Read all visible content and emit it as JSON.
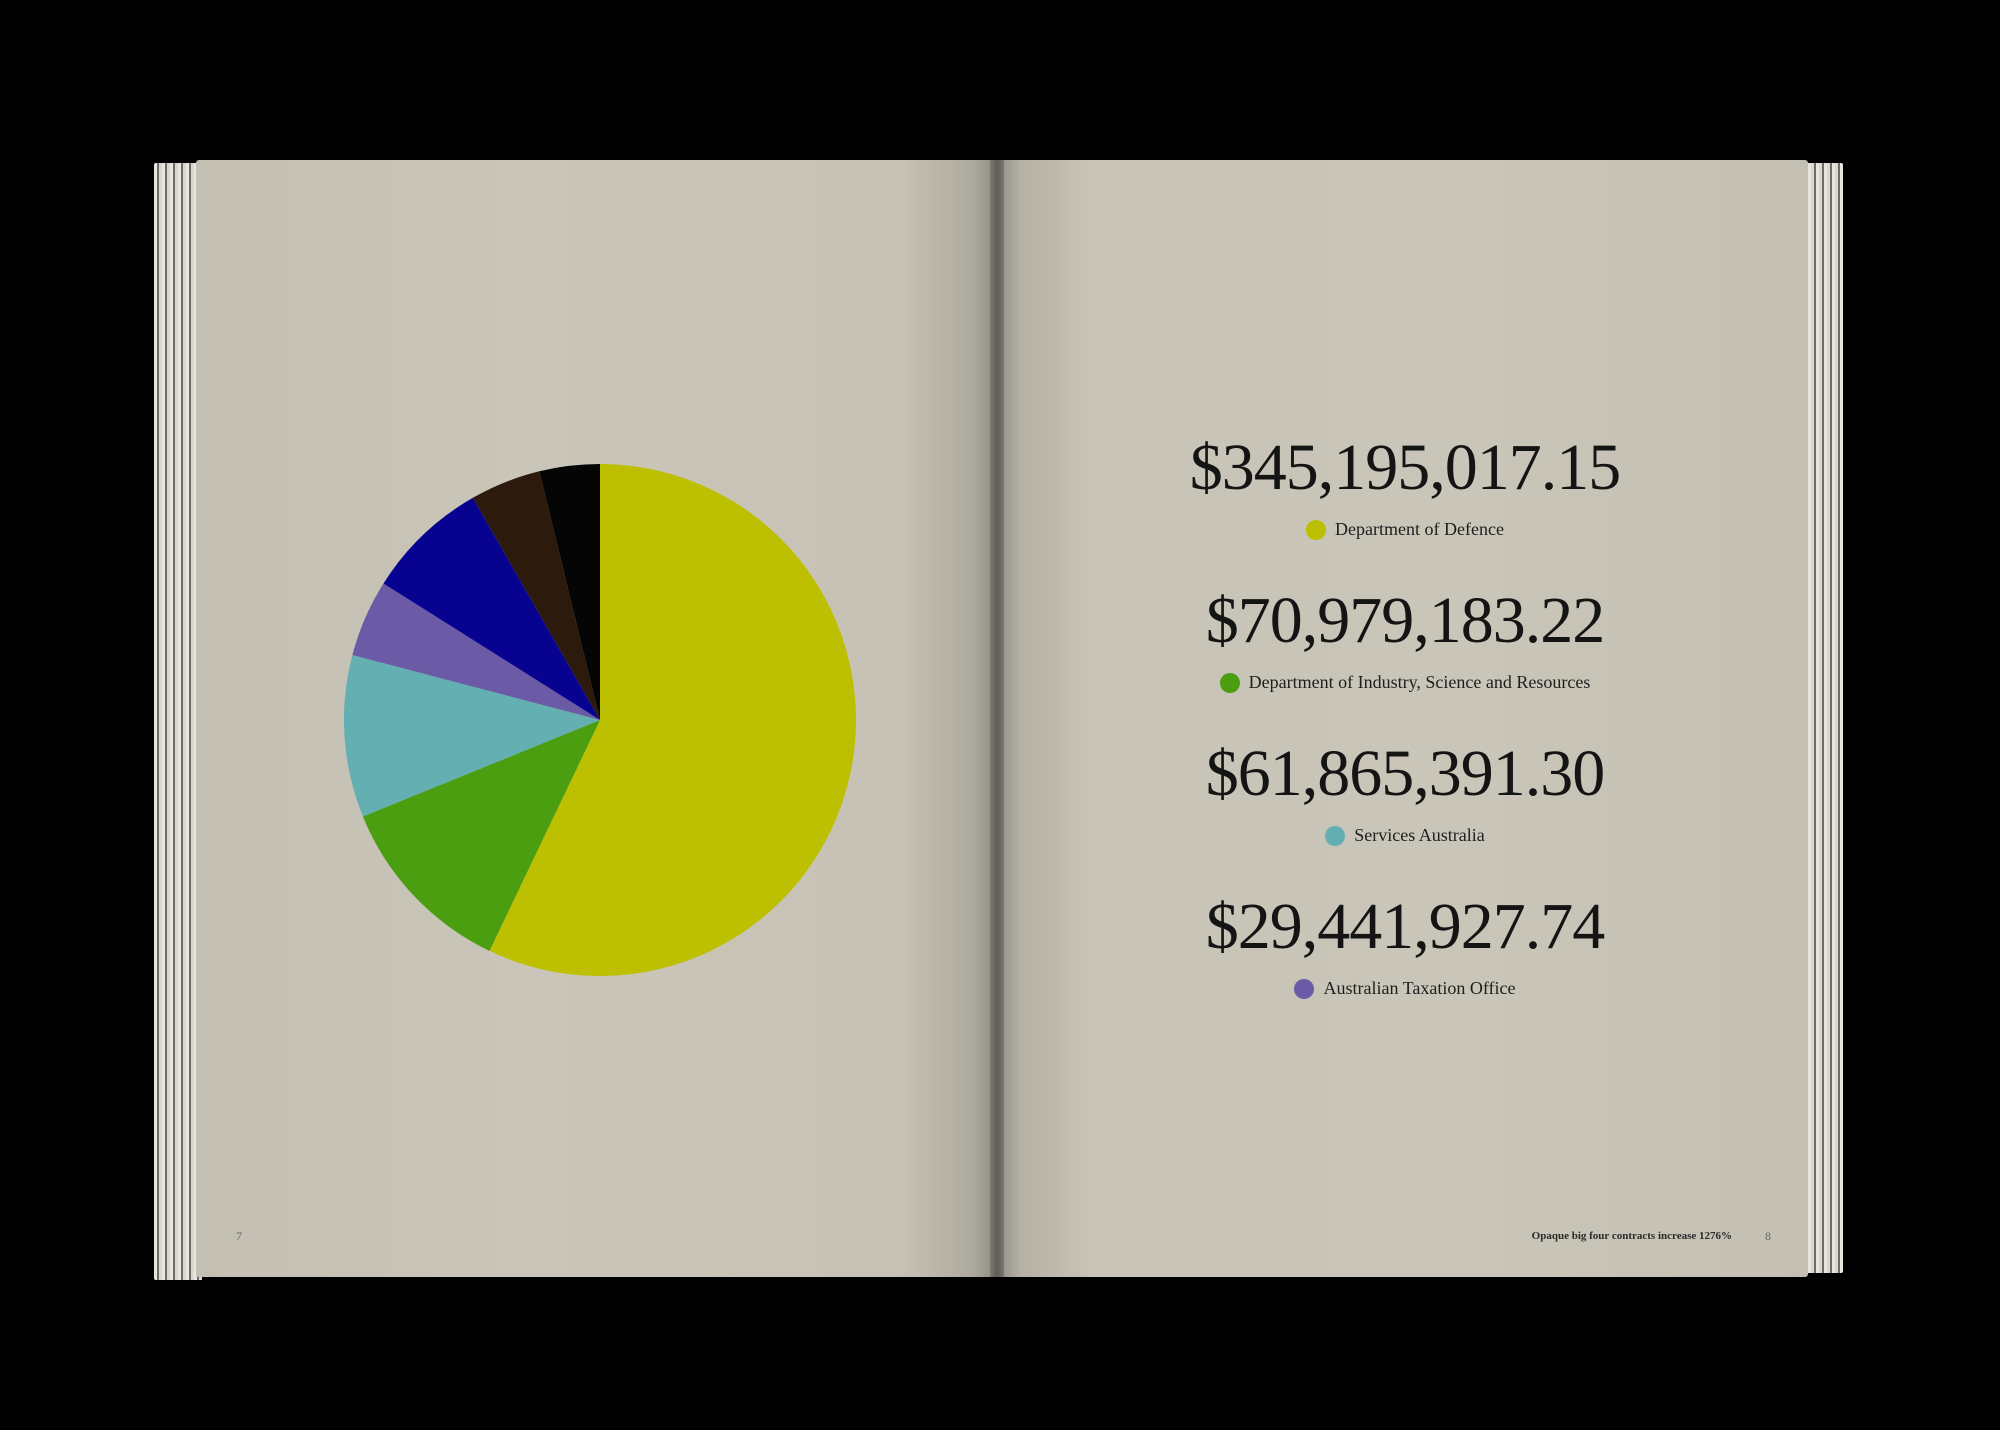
{
  "footer": {
    "title": "Opaque big four contracts increase 1276%",
    "left_page_number": "7",
    "right_page_number": "8"
  },
  "legend": [
    {
      "amount": "$345,195,017.15",
      "label": "Department of Defence",
      "color": "#bcc000"
    },
    {
      "amount": "$70,979,183.22",
      "label": "Department of Industry, Science and Resources",
      "color": "#4a9e10"
    },
    {
      "amount": "$61,865,391.30",
      "label": "Services Australia",
      "color": "#63afb1"
    },
    {
      "amount": "$29,441,927.74",
      "label": "Australian Taxation Office",
      "color": "#6b5aa6"
    }
  ],
  "chart_data": {
    "type": "pie",
    "slices": [
      {
        "label": "Department of Defence",
        "value": 345195017.15,
        "color": "#bcc000"
      },
      {
        "label": "Department of Industry, Science and Resources",
        "value": 70979183.22,
        "color": "#4a9e10"
      },
      {
        "label": "Services Australia",
        "value": 61865391.3,
        "color": "#63afb1"
      },
      {
        "label": "Australian Taxation Office",
        "value": 29441927.74,
        "color": "#6b5aa6"
      },
      {
        "label": "",
        "value": 47000000,
        "color": "#080290"
      },
      {
        "label": "",
        "value": 27000000,
        "color": "#2c1a0c"
      },
      {
        "label": "",
        "value": 23000000,
        "color": "#050505"
      }
    ],
    "direction": "clockwise from top"
  }
}
